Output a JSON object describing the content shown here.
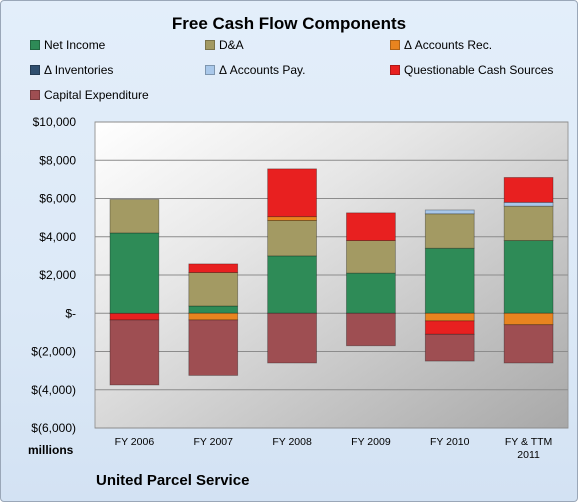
{
  "chart_data": {
    "type": "bar",
    "stacked": true,
    "title": "Free Cash Flow Components",
    "units_label": "millions",
    "company": "United Parcel Service",
    "categories": [
      [
        "FY 2006"
      ],
      [
        "FY 2007"
      ],
      [
        "FY 2008"
      ],
      [
        "FY 2009"
      ],
      [
        "FY 2010"
      ],
      [
        "FY & TTM",
        "2011"
      ]
    ],
    "ylim": [
      -6000,
      10000
    ],
    "yticks": [
      {
        "value": 10000,
        "label": "$10,000"
      },
      {
        "value": 8000,
        "label": "$8,000"
      },
      {
        "value": 6000,
        "label": "$6,000"
      },
      {
        "value": 4000,
        "label": "$4,000"
      },
      {
        "value": 2000,
        "label": "$2,000"
      },
      {
        "value": 0,
        "label": "$-"
      },
      {
        "value": -2000,
        "label": "$(2,000)"
      },
      {
        "value": -4000,
        "label": "$(4,000)"
      },
      {
        "value": -6000,
        "label": "$(6,000)"
      }
    ],
    "grid": true,
    "legend_position": "top",
    "series": [
      {
        "name": "Net Income",
        "color": "#2e8b57",
        "values": [
          4200,
          380,
          3000,
          2100,
          3400,
          3800
        ]
      },
      {
        "name": "D&A",
        "color": "#a39a63",
        "values": [
          1750,
          1750,
          1850,
          1700,
          1800,
          1800
        ]
      },
      {
        "name": "Δ Accounts Rec.",
        "color": "#e8841f",
        "values": [
          0,
          -350,
          200,
          0,
          -400,
          -600
        ]
      },
      {
        "name": "Δ Inventories",
        "color": "#2f4f6f",
        "values": [
          0,
          0,
          0,
          0,
          0,
          0
        ]
      },
      {
        "name": "Δ Accounts Pay.",
        "color": "#a9c8ea",
        "values": [
          0,
          0,
          0,
          0,
          200,
          200
        ]
      },
      {
        "name": "Questionable Cash Sources",
        "color": "#e82020",
        "values": [
          0,
          450,
          2500,
          1450,
          -700,
          1300
        ]
      },
      {
        "name": "Capital Expenditure",
        "color": "#9e4e52",
        "values": [
          -3400,
          -2900,
          -2600,
          -1700,
          -1400,
          -2000
        ]
      }
    ],
    "extra_negatives": [
      {
        "series": "Questionable Cash Sources",
        "values": [
          -350,
          0,
          0,
          0,
          0,
          0
        ]
      }
    ]
  }
}
